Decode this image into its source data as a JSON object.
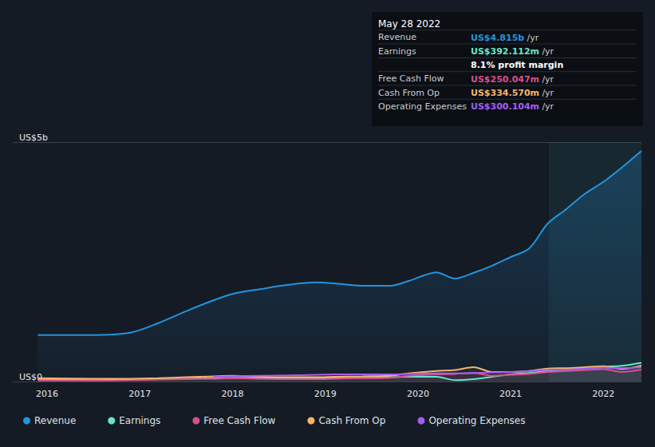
{
  "chart_data": {
    "type": "line",
    "x": [
      2015.9,
      2016.5,
      2016.9,
      2017.2,
      2017.5,
      2017.8,
      2018.0,
      2018.3,
      2018.6,
      2018.9,
      2019.1,
      2019.4,
      2019.7,
      2019.9,
      2020.2,
      2020.4,
      2020.6,
      2020.8,
      2021.0,
      2021.2,
      2021.4,
      2021.6,
      2021.8,
      2022.0,
      2022.2,
      2022.41
    ],
    "series": [
      {
        "name": "Revenue",
        "color": "#2394df",
        "values": [
          0.97,
          0.97,
          1.02,
          1.22,
          1.47,
          1.7,
          1.83,
          1.93,
          2.02,
          2.07,
          2.05,
          2.0,
          2.0,
          2.1,
          2.28,
          2.15,
          2.27,
          2.42,
          2.6,
          2.78,
          3.3,
          3.6,
          3.92,
          4.17,
          4.47,
          4.815
        ]
      },
      {
        "name": "Earnings",
        "color": "#6ae3c8",
        "values": [
          0.04,
          0.03,
          0.04,
          0.05,
          0.06,
          0.07,
          0.08,
          0.08,
          0.08,
          0.08,
          0.08,
          0.08,
          0.09,
          0.1,
          0.1,
          0.03,
          0.05,
          0.1,
          0.15,
          0.18,
          0.22,
          0.25,
          0.28,
          0.31,
          0.33,
          0.392
        ]
      },
      {
        "name": "Free Cash Flow",
        "color": "#d9508a",
        "values": [
          0.02,
          0.02,
          0.03,
          0.04,
          0.05,
          0.06,
          0.07,
          0.06,
          0.05,
          0.05,
          0.06,
          0.07,
          0.08,
          0.12,
          0.15,
          0.16,
          0.18,
          0.12,
          0.14,
          0.16,
          0.2,
          0.22,
          0.24,
          0.26,
          0.2,
          0.25
        ]
      },
      {
        "name": "Cash From Op",
        "color": "#f5b46c",
        "values": [
          0.07,
          0.06,
          0.06,
          0.07,
          0.09,
          0.11,
          0.12,
          0.1,
          0.09,
          0.09,
          0.1,
          0.11,
          0.12,
          0.17,
          0.22,
          0.24,
          0.3,
          0.2,
          0.2,
          0.22,
          0.27,
          0.28,
          0.3,
          0.32,
          0.26,
          0.335
        ]
      },
      {
        "name": "Operating Expenses",
        "color": "#a45ef2",
        "values": [
          null,
          null,
          null,
          null,
          null,
          0.1,
          0.11,
          0.12,
          0.13,
          0.14,
          0.15,
          0.15,
          0.15,
          0.16,
          0.17,
          0.17,
          0.18,
          0.19,
          0.2,
          0.22,
          0.24,
          0.25,
          0.27,
          0.29,
          0.28,
          0.3
        ]
      }
    ],
    "xlim": [
      2015.63,
      2022.41
    ],
    "xticks": [
      2016,
      2017,
      2018,
      2019,
      2020,
      2021,
      2022
    ],
    "ylim": [
      0,
      5
    ],
    "yticks": [
      {
        "value": 0,
        "label": "US$0"
      },
      {
        "value": 5,
        "label": "US$5b"
      }
    ],
    "highlight": [
      2021.41,
      2022.41
    ],
    "grid": true,
    "legend": "bottom-left",
    "annotations": {
      "title": "May 28 2022",
      "rows": [
        {
          "label": "Revenue",
          "value": "US$4.815b",
          "unit": "/yr",
          "color": "#2394df"
        },
        {
          "label": "Earnings",
          "value": "US$392.112m",
          "unit": "/yr",
          "color": "#6ae3c8"
        },
        {
          "note": "8.1% profit margin"
        },
        {
          "label": "Free Cash Flow",
          "value": "US$250.047m",
          "unit": "/yr",
          "color": "#d9508a"
        },
        {
          "label": "Cash From Op",
          "value": "US$334.570m",
          "unit": "/yr",
          "color": "#f5b46c"
        },
        {
          "label": "Operating Expenses",
          "value": "US$300.104m",
          "unit": "/yr",
          "color": "#a45ef2"
        }
      ]
    }
  }
}
